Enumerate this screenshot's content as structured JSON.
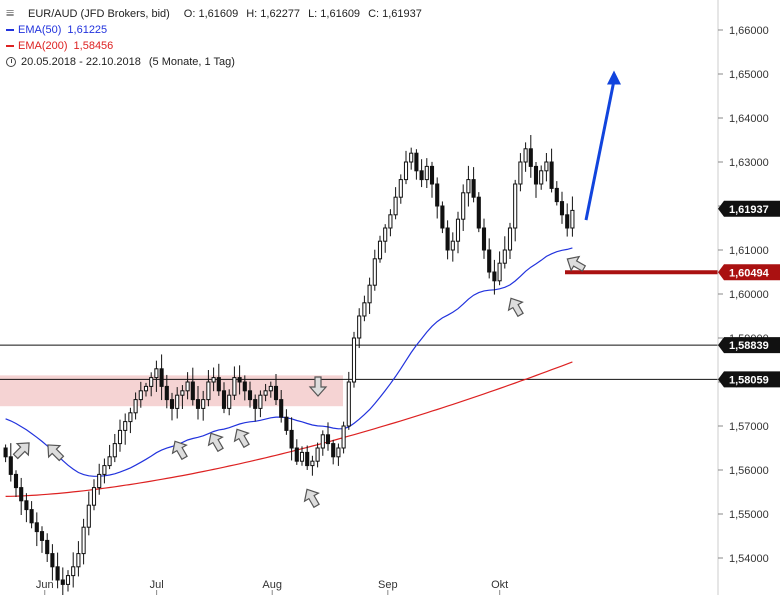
{
  "legend": {
    "symbol": "EUR/AUD (JFD Brokers, bid)",
    "open": "O: 1,61609",
    "high": "H: 1,62277",
    "low": "L: 1,61609",
    "close": "C: 1,61937",
    "ema50_label": "EMA(50)",
    "ema50_value": "1,61225",
    "ema200_label": "EMA(200)",
    "ema200_value": "1,58456",
    "range": "20.05.2018 - 22.10.2018",
    "period": "(5 Monate, 1 Tag)"
  },
  "colors": {
    "ema50": "#2233dd",
    "ema200": "#dd2222",
    "arrow": "#1144dd",
    "zone": "#f2c8c8",
    "support": "#aa1111",
    "candle": "#111111"
  },
  "icons": [
    "bar-chart-icon",
    "clock-icon",
    "arrow-up-icon",
    "arrow-down-icon"
  ],
  "chart_data": {
    "type": "candlestick",
    "ylim": [
      1.535,
      1.665
    ],
    "grid": false,
    "y_ticks": [
      "1,54000",
      "1,55000",
      "1,56000",
      "1,57000",
      "1,58000",
      "1,59000",
      "1,60000",
      "1,61000",
      "1,62000",
      "1,63000",
      "1,64000",
      "1,65000",
      "1,66000"
    ],
    "x_ticks": [
      "Jun",
      "Jul",
      "Aug",
      "Sep",
      "Okt"
    ],
    "x_tick_dates": [
      "2018-06-01",
      "2018-07-01",
      "2018-08-01",
      "2018-09-01",
      "2018-10-01"
    ],
    "x_range": [
      "2018-05-20",
      "2018-10-22"
    ],
    "closes": [
      1.563,
      1.559,
      1.556,
      1.553,
      1.551,
      1.548,
      1.546,
      1.544,
      1.541,
      1.538,
      1.535,
      1.534,
      1.536,
      1.538,
      1.541,
      1.547,
      1.552,
      1.556,
      1.559,
      1.561,
      1.563,
      1.566,
      1.569,
      1.571,
      1.573,
      1.576,
      1.578,
      1.579,
      1.581,
      1.583,
      1.579,
      1.576,
      1.574,
      1.577,
      1.578,
      1.58,
      1.576,
      1.574,
      1.576,
      1.58,
      1.581,
      1.578,
      1.574,
      1.577,
      1.581,
      1.58,
      1.578,
      1.576,
      1.574,
      1.577,
      1.578,
      1.579,
      1.576,
      1.572,
      1.569,
      1.565,
      1.562,
      1.564,
      1.561,
      1.562,
      1.565,
      1.568,
      1.566,
      1.563,
      1.565,
      1.57,
      1.58,
      1.59,
      1.595,
      1.598,
      1.602,
      1.608,
      1.612,
      1.615,
      1.618,
      1.622,
      1.626,
      1.63,
      1.632,
      1.628,
      1.626,
      1.629,
      1.625,
      1.62,
      1.615,
      1.61,
      1.612,
      1.617,
      1.623,
      1.626,
      1.622,
      1.615,
      1.61,
      1.605,
      1.603,
      1.607,
      1.61,
      1.615,
      1.625,
      1.63,
      1.633,
      1.629,
      1.625,
      1.628,
      1.63,
      1.624,
      1.621,
      1.618,
      1.615,
      1.619
    ],
    "ema50_end": 1.61225,
    "ema200_end": 1.58456,
    "price_labels": [
      {
        "value": 1.61937,
        "text": "1,61937",
        "style": "dark"
      },
      {
        "value": 1.60494,
        "text": "1,60494",
        "style": "red"
      },
      {
        "value": 1.58839,
        "text": "1,58839",
        "style": "dark"
      },
      {
        "value": 1.58059,
        "text": "1,58059",
        "style": "dark"
      }
    ],
    "horizontal_lines": [
      1.58839,
      1.58059
    ],
    "support_zone": [
      1.5745,
      1.5815
    ],
    "support_level": 1.60494,
    "forecast_arrow": {
      "from": 1.6168,
      "to": 1.6508
    }
  }
}
